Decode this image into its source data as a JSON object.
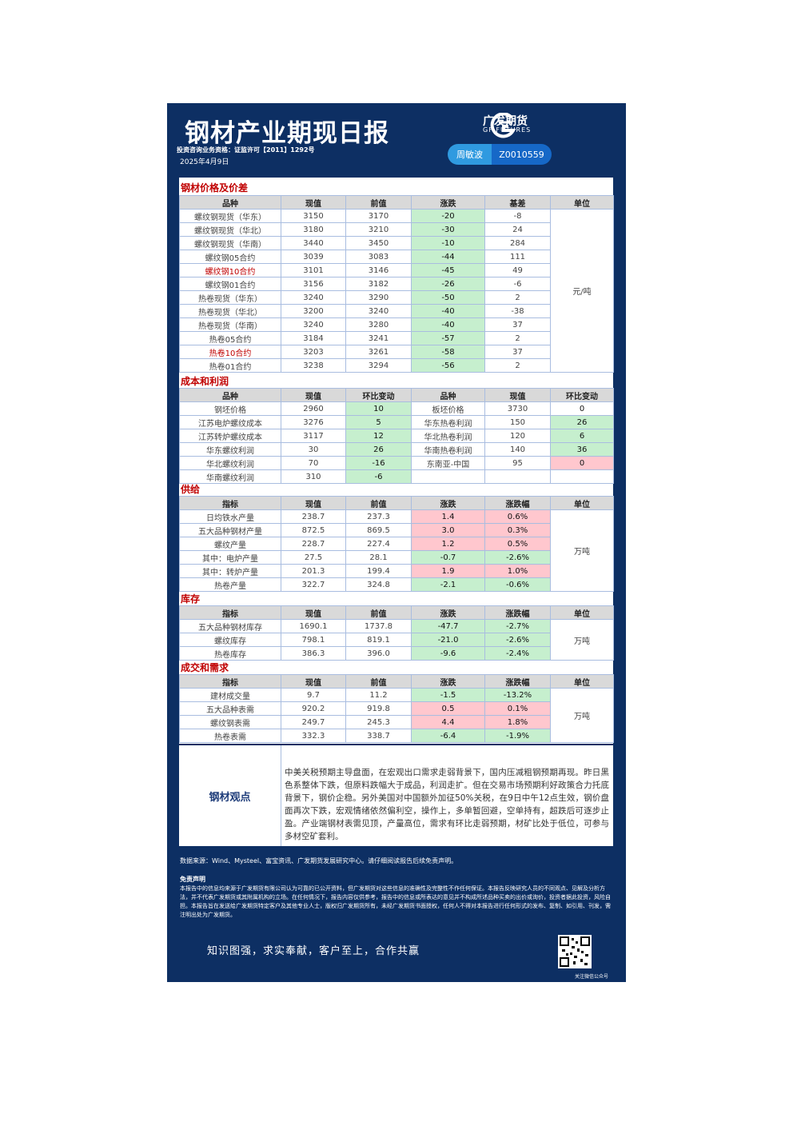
{
  "header": {
    "title": "钢材产业期现日报",
    "qualification": "投资咨询业务资格：证监许可【2011】1292号",
    "date": "2025年4月9日",
    "logo_cn": "广发期货",
    "logo_en": "GF FUTURES",
    "analyst": "周敏波",
    "license": "Z0010559"
  },
  "prices": {
    "title": "钢材价格及价差",
    "columns": [
      "品种",
      "现值",
      "前值",
      "涨跌",
      "基差",
      "单位"
    ],
    "unit": "元/吨",
    "rows": [
      [
        "螺纹钢现货（华东）",
        "3150",
        "3170",
        "-20",
        "-8"
      ],
      [
        "螺纹钢现货（华北）",
        "3180",
        "3210",
        "-30",
        "24"
      ],
      [
        "螺纹钢现货（华南）",
        "3440",
        "3450",
        "-10",
        "284"
      ],
      [
        "螺纹钢05合约",
        "3039",
        "3083",
        "-44",
        "111"
      ],
      [
        "螺纹钢10合约",
        "3101",
        "3146",
        "-45",
        "49"
      ],
      [
        "螺纹钢01合约",
        "3156",
        "3182",
        "-26",
        "-6"
      ],
      [
        "热卷现货（华东）",
        "3240",
        "3290",
        "-50",
        "2"
      ],
      [
        "热卷现货（华北）",
        "3200",
        "3240",
        "-40",
        "-38"
      ],
      [
        "热卷现货（华南）",
        "3240",
        "3280",
        "-40",
        "37"
      ],
      [
        "热卷05合约",
        "3184",
        "3241",
        "-57",
        "2"
      ],
      [
        "热卷10合约",
        "3203",
        "3261",
        "-58",
        "37"
      ],
      [
        "热卷01合约",
        "3238",
        "3294",
        "-56",
        "2"
      ]
    ],
    "colors": [
      "#c6efce",
      "#c6efce",
      "#c6efce",
      "#c6efce",
      "#c6efce",
      "#c6efce",
      "#c6efce",
      "#c6efce",
      "#c6efce",
      "#c6efce",
      "#c6efce",
      "#c6efce"
    ],
    "label_colors": [
      null,
      null,
      null,
      null,
      "#c00000",
      null,
      null,
      null,
      null,
      null,
      "#c00000",
      null
    ]
  },
  "cost": {
    "title": "成本和利润",
    "columns": [
      "品种",
      "现值",
      "环比变动",
      "品种",
      "现值",
      "环比变动"
    ],
    "rows": [
      [
        "钢坯价格",
        "2960",
        "10",
        "板坯价格",
        "3730",
        "0"
      ],
      [
        "江苏电炉螺纹成本",
        "3276",
        "5",
        "华东热卷利润",
        "150",
        "26"
      ],
      [
        "江苏转炉螺纹成本",
        "3117",
        "12",
        "华北热卷利润",
        "120",
        "6"
      ],
      [
        "华东螺纹利润",
        "30",
        "26",
        "华南热卷利润",
        "140",
        "36"
      ],
      [
        "华北螺纹利润",
        "70",
        "-16",
        "东南亚-中国",
        "95",
        "0"
      ],
      [
        "华南螺纹利润",
        "310",
        "-6"
      ]
    ],
    "colors": [
      [
        "#c6efce",
        null
      ],
      [
        "#c6efce",
        "#c6efce"
      ],
      [
        "#c6efce",
        "#c6efce"
      ],
      [
        "#c6efce",
        "#c6efce"
      ],
      [
        "#c6efce",
        "#ffc7ce"
      ],
      [
        "#c6efce",
        null
      ]
    ]
  },
  "supply": {
    "title": "供给",
    "columns": [
      "指标",
      "现值",
      "前值",
      "涨跌",
      "涨跌幅",
      "单位"
    ],
    "unit": "万吨",
    "rows": [
      [
        "日均铁水产量",
        "238.7",
        "237.3",
        "1.4",
        "0.6%"
      ],
      [
        "五大品种钢材产量",
        "872.5",
        "869.5",
        "3.0",
        "0.3%"
      ],
      [
        "螺纹产量",
        "228.7",
        "227.4",
        "1.2",
        "0.5%"
      ],
      [
        "其中：电炉产量",
        "27.5",
        "28.1",
        "-0.7",
        "-2.6%"
      ],
      [
        "其中：转炉产量",
        "201.3",
        "199.4",
        "1.9",
        "1.0%"
      ],
      [
        "热卷产量",
        "322.7",
        "324.8",
        "-2.1",
        "-0.6%"
      ]
    ],
    "colors": [
      "#ffc7ce",
      "#ffc7ce",
      "#ffc7ce",
      "#c6efce",
      "#ffc7ce",
      "#c6efce"
    ]
  },
  "inventory": {
    "title": "库存",
    "columns": [
      "指标",
      "现值",
      "前值",
      "涨跌",
      "涨跌幅",
      "单位"
    ],
    "unit": "万吨",
    "rows": [
      [
        "五大品种钢材库存",
        "1690.1",
        "1737.8",
        "-47.7",
        "-2.7%"
      ],
      [
        "螺纹库存",
        "798.1",
        "819.1",
        "-21.0",
        "-2.6%"
      ],
      [
        "热卷库存",
        "386.3",
        "396.0",
        "-9.6",
        "-2.4%"
      ]
    ],
    "colors": [
      "#c6efce",
      "#c6efce",
      "#c6efce"
    ]
  },
  "demand": {
    "title": "成交和需求",
    "columns": [
      "指标",
      "现值",
      "前值",
      "涨跌",
      "涨跌幅",
      "单位"
    ],
    "unit": "万吨",
    "rows": [
      [
        "建材成交量",
        "9.7",
        "11.2",
        "-1.5",
        "-13.2%"
      ],
      [
        "五大品种表需",
        "920.2",
        "919.8",
        "0.5",
        "0.1%"
      ],
      [
        "螺纹钢表需",
        "249.7",
        "245.3",
        "4.4",
        "1.8%"
      ],
      [
        "热卷表需",
        "332.3",
        "338.7",
        "-6.4",
        "-1.9%"
      ]
    ],
    "colors": [
      "#c6efce",
      "#ffc7ce",
      "#ffc7ce",
      "#c6efce"
    ]
  },
  "view": {
    "label": "钢材观点",
    "text": "中美关税预期主导盘面，在宏观出口需求走弱背景下，国内压减粗钢预期再现。昨日黑色系整体下跌，但原料跌幅大于成品，利润走扩。但在交易市场预期利好政策合力托底背景下，钢价企稳。另外美国对中国额外加征50%关税，在9日中午12点生效，钢价盘面再次下跌，宏观情绪依然偏利空，操作上，多单暂回避，空单持有，超跌后可逐步止盈。产业端钢材表需见顶，产量高位，需求有环比走弱预期，材矿比处于低位，可参与多材空矿套利。"
  },
  "footer": {
    "source": "数据来源：Wind、Mysteel、富宝资讯、广发期货发展研究中心。请仔细阅读报告后续免责声明。",
    "disclaimer_title": "免责声明",
    "disclaimer": "本报告中的信息均来源于广发期货有限公司认为可靠的已公开资料，但广发期货对这些信息的准确性及完整性不作任何保证。本报告反映研究人员的不同观点、见解及分析方法，并不代表广发期货或其附属机构的立场。在任何情况下，报告内容仅供参考，报告中的信息或所表达的意见并不构成所述品种买卖的出价或询价，投资者据此投资，风险自担。本报告旨在发送给广发期货特定客户及其他专业人士，版权归广发期货所有，未经广发期货书面授权，任何人不得对本报告进行任何形式的发布、复制、如引用、刊发，需注明出处为广发期货。",
    "motto": "知识图强，求实奉献，客户至上，合作共赢",
    "qr_caption": "关注微信公众号"
  }
}
